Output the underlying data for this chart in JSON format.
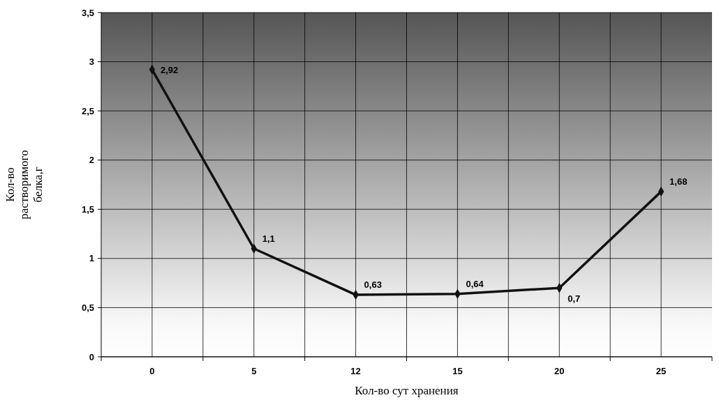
{
  "chart_data": {
    "type": "line",
    "xlabel": "Кол-во сут хранения",
    "ylabel": "Кол-во растворимого белка,г",
    "categories": [
      "0",
      "5",
      "12",
      "15",
      "20",
      "25"
    ],
    "series": [
      {
        "color": "#111111",
        "values": [
          2.92,
          1.1,
          0.63,
          0.64,
          0.7,
          1.68
        ],
        "value_labels": [
          "2,92",
          "1,1",
          "0,63",
          "0,64",
          "0,7",
          "1,68"
        ]
      }
    ],
    "ylim": [
      0,
      3.5
    ],
    "yticks": [
      0,
      {
        "value": 0.5,
        "label": "0,5"
      },
      1,
      {
        "value": 1.5,
        "label": "1,5"
      },
      2,
      {
        "value": 2.5,
        "label": "2,5"
      },
      3,
      {
        "value": 3.5,
        "label": "3,5"
      }
    ],
    "grid": true,
    "marker": "diamond",
    "line_style": "solid"
  }
}
